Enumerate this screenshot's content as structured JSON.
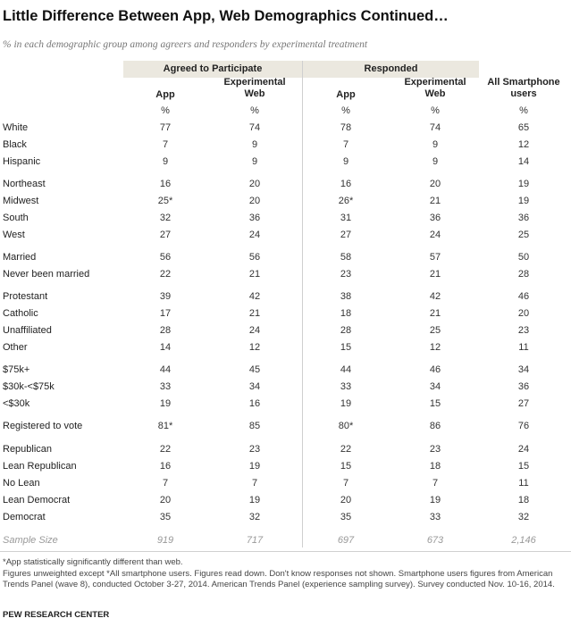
{
  "title": "Little Difference Between App, Web Demographics Continued…",
  "subtitle": "% in each demographic group among agreers and responders by experimental treatment",
  "groups": {
    "agreed": "Agreed to Participate",
    "responded": "Responded"
  },
  "columns": [
    "App",
    "Experimental Web",
    "App",
    "Experimental Web",
    "All Smartphone users"
  ],
  "units": [
    "%",
    "%",
    "%",
    "%",
    "%"
  ],
  "rows": [
    {
      "label": "White",
      "values": [
        "77",
        "74",
        "78",
        "74",
        "65"
      ]
    },
    {
      "label": "Black",
      "values": [
        "7",
        "9",
        "7",
        "9",
        "12"
      ]
    },
    {
      "label": "Hispanic",
      "values": [
        "9",
        "9",
        "9",
        "9",
        "14"
      ]
    },
    {
      "label": "Northeast",
      "values": [
        "16",
        "20",
        "16",
        "20",
        "19"
      ]
    },
    {
      "label": "Midwest",
      "values": [
        "25*",
        "20",
        "26*",
        "21",
        "19"
      ]
    },
    {
      "label": "South",
      "values": [
        "32",
        "36",
        "31",
        "36",
        "36"
      ]
    },
    {
      "label": "West",
      "values": [
        "27",
        "24",
        "27",
        "24",
        "25"
      ]
    },
    {
      "label": "Married",
      "values": [
        "56",
        "56",
        "58",
        "57",
        "50"
      ]
    },
    {
      "label": "Never been married",
      "values": [
        "22",
        "21",
        "23",
        "21",
        "28"
      ]
    },
    {
      "label": "Protestant",
      "values": [
        "39",
        "42",
        "38",
        "42",
        "46"
      ]
    },
    {
      "label": "Catholic",
      "values": [
        "17",
        "21",
        "18",
        "21",
        "20"
      ]
    },
    {
      "label": "Unaffiliated",
      "values": [
        "28",
        "24",
        "28",
        "25",
        "23"
      ]
    },
    {
      "label": "Other",
      "values": [
        "14",
        "12",
        "15",
        "12",
        "11"
      ]
    },
    {
      "label": "$75k+",
      "values": [
        "44",
        "45",
        "44",
        "46",
        "34"
      ]
    },
    {
      "label": "$30k-<$75k",
      "values": [
        "33",
        "34",
        "33",
        "34",
        "36"
      ]
    },
    {
      "label": "<$30k",
      "values": [
        "19",
        "16",
        "19",
        "15",
        "27"
      ]
    },
    {
      "label": "Registered to vote",
      "values": [
        "81*",
        "85",
        "80*",
        "86",
        "76"
      ]
    },
    {
      "label": "Republican",
      "values": [
        "22",
        "23",
        "22",
        "23",
        "24"
      ]
    },
    {
      "label": "Lean Republican",
      "values": [
        "16",
        "19",
        "15",
        "18",
        "15"
      ]
    },
    {
      "label": "No Lean",
      "values": [
        "7",
        "7",
        "7",
        "7",
        "11"
      ]
    },
    {
      "label": "Lean Democrat",
      "values": [
        "20",
        "19",
        "20",
        "19",
        "18"
      ]
    },
    {
      "label": "Democrat",
      "values": [
        "35",
        "32",
        "35",
        "33",
        "32"
      ]
    }
  ],
  "sample": {
    "label": "Sample Size",
    "values": [
      "919",
      "717",
      "697",
      "673",
      "2,146"
    ]
  },
  "notes": [
    "*App statistically significantly different than web.",
    "Figures unweighted except *All smartphone users. Figures read down. Don't know responses not shown.  Smartphone users figures from American Trends Panel (wave 8), conducted October 3-27, 2014.  American Trends Panel (experience sampling survey). Survey conducted Nov. 10-16, 2014."
  ],
  "source": "PEW RESEARCH CENTER"
}
